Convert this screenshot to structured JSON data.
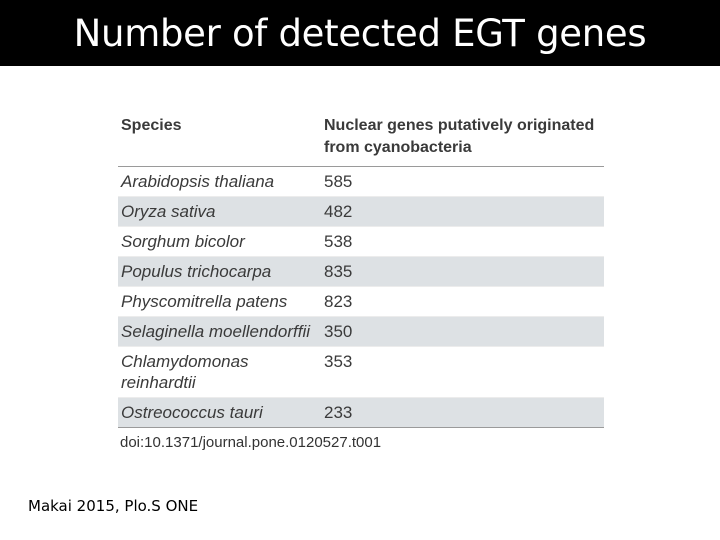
{
  "header": {
    "title": "Number of detected EGT genes"
  },
  "table": {
    "columns": [
      "Species",
      "Nuclear genes putatively originated from cyanobacteria"
    ],
    "rows": [
      {
        "species": "Arabidopsis thaliana",
        "count": "585"
      },
      {
        "species": "Oryza sativa",
        "count": "482"
      },
      {
        "species": "Sorghum bicolor",
        "count": "538"
      },
      {
        "species": "Populus trichocarpa",
        "count": "835"
      },
      {
        "species": "Physcomitrella patens",
        "count": "823"
      },
      {
        "species": "Selaginella moellendorffii",
        "count": "350"
      },
      {
        "species": "Chlamydomonas reinhardtii",
        "count": "353"
      },
      {
        "species": "Ostreococcus tauri",
        "count": "233"
      }
    ],
    "doi": "doi:10.1371/journal.pone.0120527.t001"
  },
  "footer": {
    "citation": "Makai 2015, Plo.S ONE"
  }
}
